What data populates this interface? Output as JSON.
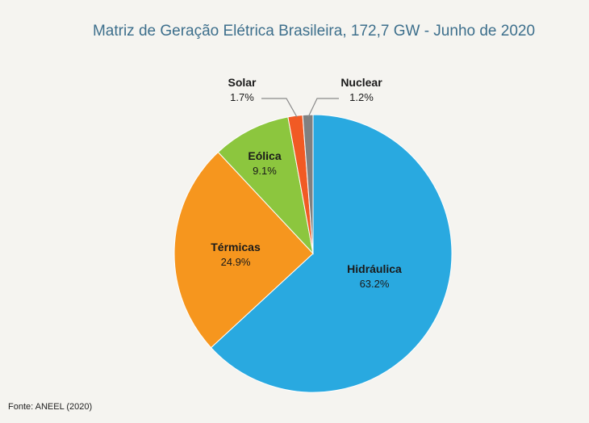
{
  "chart_data": {
    "type": "pie",
    "title": "Matriz de Geração Elétrica Brasileira, 172,7 GW - Junho de 2020",
    "slices": [
      {
        "label": "Hidráulica",
        "value": 63.2,
        "value_label": "63.2%",
        "color": "#29a9e0"
      },
      {
        "label": "Térmicas",
        "value": 24.9,
        "value_label": "24.9%",
        "color": "#f6961e"
      },
      {
        "label": "Eólica",
        "value": 9.1,
        "value_label": "9.1%",
        "color": "#8cc63e"
      },
      {
        "label": "Solar",
        "value": 1.7,
        "value_label": "1.7%",
        "color": "#f15a24"
      },
      {
        "label": "Nuclear",
        "value": 1.2,
        "value_label": "1.2%",
        "color": "#808080"
      }
    ],
    "legend": "none"
  },
  "source": "Fonte: ANEEL (2020)"
}
